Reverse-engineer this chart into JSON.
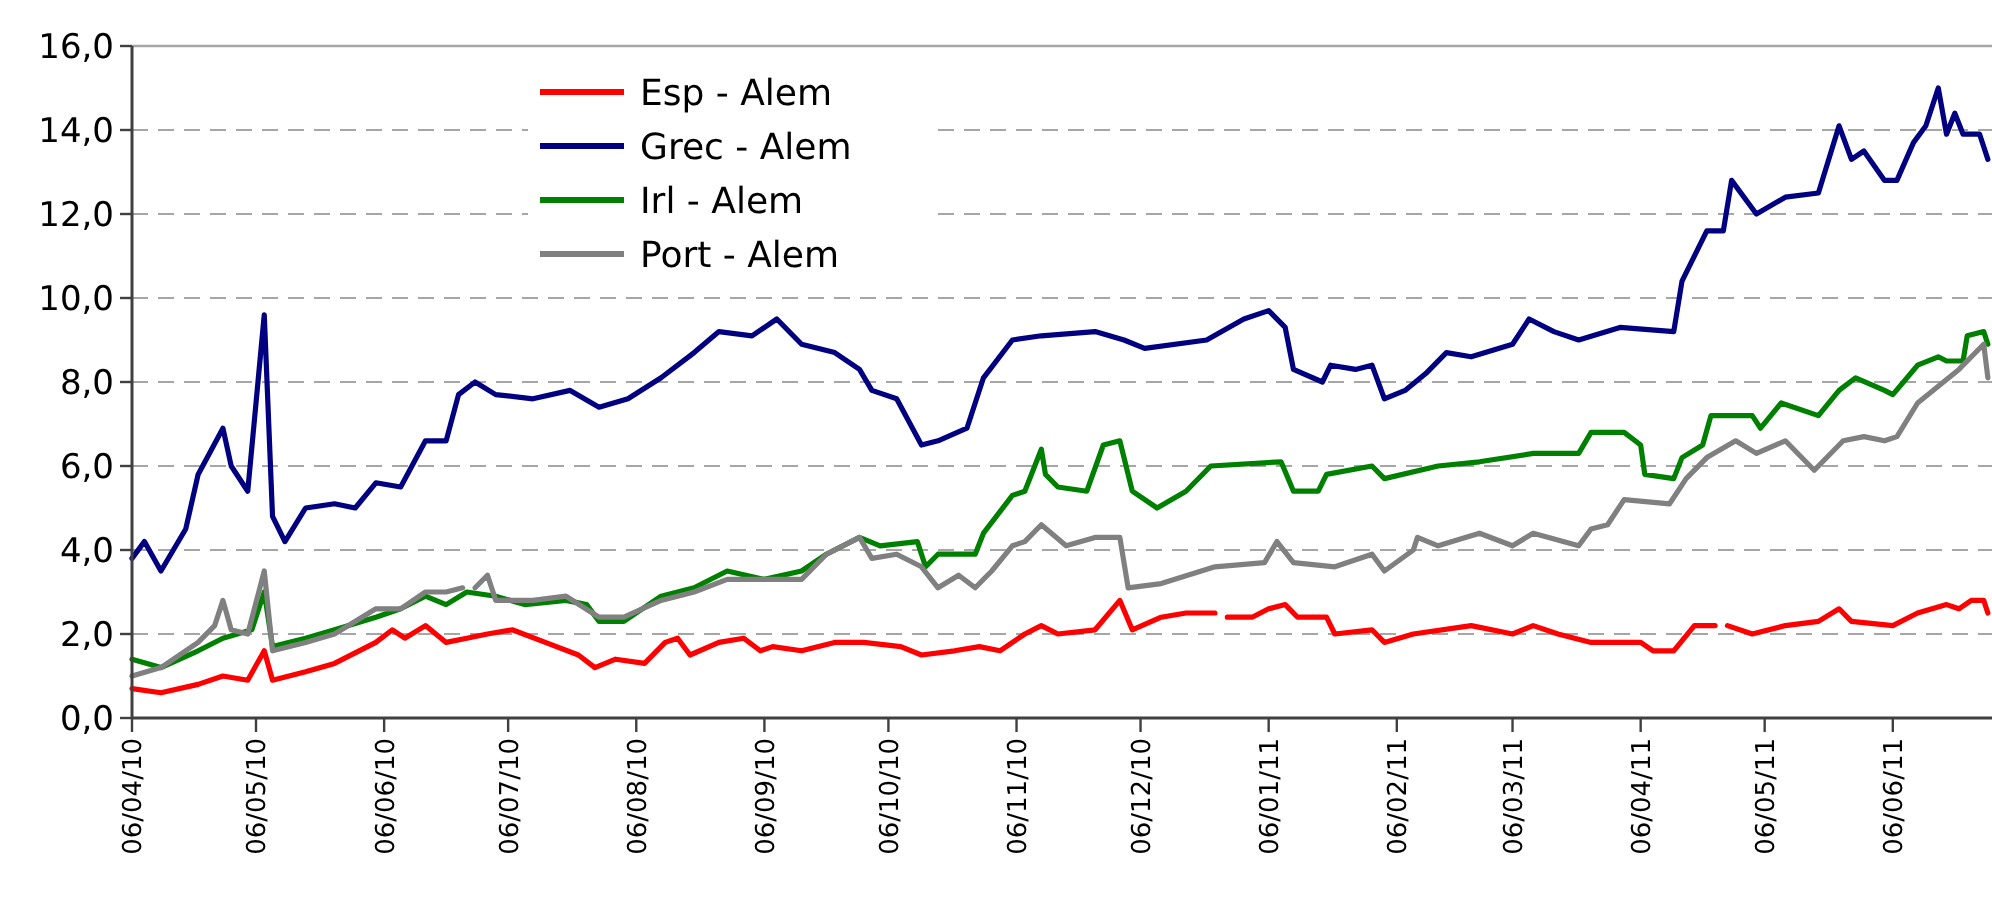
{
  "chart_data": {
    "type": "line",
    "xlim": [
      "2010-04-06",
      "2011-06-30"
    ],
    "ylim": [
      0,
      16
    ],
    "xticks": [
      {
        "value": "2010-04-06",
        "label": "06/04/10"
      },
      {
        "value": "2010-05-06",
        "label": "06/05/10"
      },
      {
        "value": "2010-06-06",
        "label": "06/06/10"
      },
      {
        "value": "2010-07-06",
        "label": "06/07/10"
      },
      {
        "value": "2010-08-06",
        "label": "06/08/10"
      },
      {
        "value": "2010-09-06",
        "label": "06/09/10"
      },
      {
        "value": "2010-10-06",
        "label": "06/10/10"
      },
      {
        "value": "2010-11-06",
        "label": "06/11/10"
      },
      {
        "value": "2010-12-06",
        "label": "06/12/10"
      },
      {
        "value": "2011-01-06",
        "label": "06/01/11"
      },
      {
        "value": "2011-02-06",
        "label": "06/02/11"
      },
      {
        "value": "2011-03-06",
        "label": "06/03/11"
      },
      {
        "value": "2011-04-06",
        "label": "06/04/11"
      },
      {
        "value": "2011-05-06",
        "label": "06/05/11"
      },
      {
        "value": "2011-06-06",
        "label": "06/06/11"
      }
    ],
    "yticks": [
      {
        "value": 0,
        "label": "0,0"
      },
      {
        "value": 2,
        "label": "2,0"
      },
      {
        "value": 4,
        "label": "4,0"
      },
      {
        "value": 6,
        "label": "6,0"
      },
      {
        "value": 8,
        "label": "8,0"
      },
      {
        "value": 10,
        "label": "10,0"
      },
      {
        "value": 12,
        "label": "12,0"
      },
      {
        "value": 14,
        "label": "14,0"
      },
      {
        "value": 16,
        "label": "16,0"
      }
    ],
    "grid": "y",
    "legend": "top left",
    "marker": "none",
    "line_style": "solid",
    "series": [
      {
        "name": "Esp - Alem",
        "color": "#ff0000",
        "x": [
          "2010-04-06",
          "2010-04-13",
          "2010-04-22",
          "2010-04-28",
          "2010-05-04",
          "2010-05-08",
          "2010-05-10",
          "2010-05-18",
          "2010-05-25",
          "2010-06-04",
          "2010-06-08",
          "2010-06-11",
          "2010-06-16",
          "2010-06-21",
          "2010-06-26",
          "2010-07-01",
          "2010-07-07",
          "2010-07-15",
          "2010-07-23",
          "2010-07-27",
          "2010-08-01",
          "2010-08-08",
          "2010-08-13",
          "2010-08-16",
          "2010-08-19",
          "2010-08-26",
          "2010-09-01",
          "2010-09-05",
          "2010-09-08",
          "2010-09-15",
          "2010-09-23",
          "2010-09-30",
          "2010-10-09",
          "2010-10-14",
          "2010-10-22",
          "2010-10-28",
          "2010-11-02",
          "2010-11-08",
          "2010-11-12",
          "2010-11-16",
          "2010-11-25",
          "2010-12-01",
          "2010-12-04",
          "2010-12-11",
          "2010-12-17",
          "2010-12-24",
          "2010-12-26",
          "2010-12-27",
          "2011-01-02",
          "2011-01-06",
          "2011-01-10",
          "2011-01-13",
          "2011-01-20",
          "2011-01-22",
          "2011-01-31",
          "2011-02-03",
          "2011-02-10",
          "2011-02-24",
          "2011-03-06",
          "2011-03-11",
          "2011-03-17",
          "2011-03-25",
          "2011-04-06",
          "2011-04-09",
          "2011-04-14",
          "2011-04-19",
          "2011-04-24",
          "2011-04-25",
          "2011-04-27",
          "2011-05-03",
          "2011-05-11",
          "2011-05-19",
          "2011-05-24",
          "2011-05-27",
          "2011-06-06",
          "2011-06-12",
          "2011-06-19",
          "2011-06-22",
          "2011-06-25",
          "2011-06-28",
          "2011-06-29"
        ],
        "values": [
          0.7,
          0.6,
          0.8,
          1.0,
          0.9,
          1.6,
          0.9,
          1.1,
          1.3,
          1.8,
          2.1,
          1.9,
          2.2,
          1.8,
          1.9,
          2.0,
          2.1,
          1.8,
          1.5,
          1.2,
          1.4,
          1.3,
          1.8,
          1.9,
          1.5,
          1.8,
          1.9,
          1.6,
          1.7,
          1.6,
          1.8,
          1.8,
          1.7,
          1.5,
          1.6,
          1.7,
          1.6,
          2.0,
          2.2,
          2.0,
          2.1,
          2.8,
          2.1,
          2.4,
          2.5,
          2.5,
          null,
          2.4,
          2.4,
          2.6,
          2.7,
          2.4,
          2.4,
          2.0,
          2.1,
          1.8,
          2.0,
          2.2,
          2.0,
          2.2,
          2.0,
          1.8,
          1.8,
          1.6,
          1.6,
          2.2,
          2.2,
          null,
          2.2,
          2.0,
          2.2,
          2.3,
          2.6,
          2.3,
          2.2,
          2.5,
          2.7,
          2.6,
          2.8,
          2.8,
          2.5
        ]
      },
      {
        "name": "Grec - Alem",
        "color": "#000080",
        "x": [
          "2010-04-06",
          "2010-04-09",
          "2010-04-13",
          "2010-04-19",
          "2010-04-22",
          "2010-04-28",
          "2010-04-30",
          "2010-05-04",
          "2010-05-08",
          "2010-05-10",
          "2010-05-13",
          "2010-05-18",
          "2010-05-25",
          "2010-05-30",
          "2010-06-04",
          "2010-06-10",
          "2010-06-16",
          "2010-06-21",
          "2010-06-24",
          "2010-06-28",
          "2010-07-03",
          "2010-07-12",
          "2010-07-21",
          "2010-07-28",
          "2010-08-04",
          "2010-08-12",
          "2010-08-20",
          "2010-08-26",
          "2010-09-03",
          "2010-09-09",
          "2010-09-15",
          "2010-09-23",
          "2010-09-29",
          "2010-10-02",
          "2010-10-08",
          "2010-10-14",
          "2010-10-18",
          "2010-10-25",
          "2010-10-29",
          "2010-11-05",
          "2010-11-12",
          "2010-11-25",
          "2010-12-02",
          "2010-12-07",
          "2010-12-22",
          "2010-12-31",
          "2011-01-06",
          "2011-01-10",
          "2011-01-12",
          "2011-01-19",
          "2011-01-21",
          "2011-01-27",
          "2011-01-31",
          "2011-02-03",
          "2011-02-08",
          "2011-02-13",
          "2011-02-18",
          "2011-02-24",
          "2011-03-06",
          "2011-03-10",
          "2011-03-16",
          "2011-03-22",
          "2011-04-01",
          "2011-04-14",
          "2011-04-16",
          "2011-04-22",
          "2011-04-26",
          "2011-04-28",
          "2011-05-04",
          "2011-05-11",
          "2011-05-19",
          "2011-05-24",
          "2011-05-27",
          "2011-05-30",
          "2011-06-04",
          "2011-06-07",
          "2011-06-11",
          "2011-06-14",
          "2011-06-17",
          "2011-06-19",
          "2011-06-21",
          "2011-06-23",
          "2011-06-27",
          "2011-06-29"
        ],
        "values": [
          3.8,
          4.2,
          3.5,
          4.5,
          5.8,
          6.9,
          6.0,
          5.4,
          9.6,
          4.8,
          4.2,
          5.0,
          5.1,
          5.0,
          5.6,
          5.5,
          6.6,
          6.6,
          7.7,
          8.0,
          7.7,
          7.6,
          7.8,
          7.4,
          7.6,
          8.1,
          8.7,
          9.2,
          9.1,
          9.5,
          8.9,
          8.7,
          8.3,
          7.8,
          7.6,
          6.5,
          6.6,
          6.9,
          8.1,
          9.0,
          9.1,
          9.2,
          9.0,
          8.8,
          9.0,
          9.5,
          9.7,
          9.3,
          8.3,
          8.0,
          8.4,
          8.3,
          8.4,
          7.6,
          7.8,
          8.2,
          8.7,
          8.6,
          8.9,
          9.5,
          9.2,
          9.0,
          9.3,
          9.2,
          10.4,
          11.6,
          11.6,
          12.8,
          12.0,
          12.4,
          12.5,
          14.1,
          13.3,
          13.5,
          12.8,
          12.8,
          13.7,
          14.1,
          15.0,
          13.9,
          14.4,
          13.9,
          13.9,
          13.3
        ]
      },
      {
        "name": "Irl - Alem",
        "color": "#008000",
        "x": [
          "2010-04-06",
          "2010-04-13",
          "2010-04-22",
          "2010-04-28",
          "2010-05-05",
          "2010-05-08",
          "2010-05-10",
          "2010-05-18",
          "2010-05-25",
          "2010-06-04",
          "2010-06-10",
          "2010-06-16",
          "2010-06-21",
          "2010-06-26",
          "2010-07-03",
          "2010-07-10",
          "2010-07-20",
          "2010-07-25",
          "2010-07-28",
          "2010-08-03",
          "2010-08-12",
          "2010-08-20",
          "2010-08-28",
          "2010-09-06",
          "2010-09-15",
          "2010-09-21",
          "2010-09-29",
          "2010-10-04",
          "2010-10-13",
          "2010-10-15",
          "2010-10-18",
          "2010-10-27",
          "2010-10-29",
          "2010-11-05",
          "2010-11-08",
          "2010-11-12",
          "2010-11-13",
          "2010-11-16",
          "2010-11-23",
          "2010-11-27",
          "2010-12-01",
          "2010-12-04",
          "2010-12-10",
          "2010-12-17",
          "2010-12-23",
          "2011-01-09",
          "2011-01-12",
          "2011-01-18",
          "2011-01-20",
          "2011-01-31",
          "2011-02-03",
          "2011-02-16",
          "2011-02-26",
          "2011-03-11",
          "2011-03-22",
          "2011-03-25",
          "2011-04-02",
          "2011-04-06",
          "2011-04-07",
          "2011-04-14",
          "2011-04-16",
          "2011-04-21",
          "2011-04-23",
          "2011-05-03",
          "2011-05-05",
          "2011-05-10",
          "2011-05-19",
          "2011-05-24",
          "2011-05-28",
          "2011-06-04",
          "2011-06-06",
          "2011-06-12",
          "2011-06-17",
          "2011-06-19",
          "2011-06-23",
          "2011-06-24",
          "2011-06-28",
          "2011-06-29"
        ],
        "values": [
          1.4,
          1.2,
          1.6,
          1.9,
          2.1,
          3.0,
          1.7,
          1.9,
          2.1,
          2.4,
          2.6,
          2.9,
          2.7,
          3.0,
          2.9,
          2.7,
          2.8,
          2.7,
          2.3,
          2.3,
          2.9,
          3.1,
          3.5,
          3.3,
          3.5,
          3.9,
          4.3,
          4.1,
          4.2,
          3.6,
          3.9,
          3.9,
          4.4,
          5.3,
          5.4,
          6.4,
          5.8,
          5.5,
          5.4,
          6.5,
          6.6,
          5.4,
          5.0,
          5.4,
          6.0,
          6.1,
          5.4,
          5.4,
          5.8,
          6.0,
          5.7,
          6.0,
          6.1,
          6.3,
          6.3,
          6.8,
          6.8,
          6.5,
          5.8,
          5.7,
          6.2,
          6.5,
          7.2,
          7.2,
          6.9,
          7.5,
          7.2,
          7.8,
          8.1,
          7.8,
          7.7,
          8.4,
          8.6,
          8.5,
          8.5,
          9.1,
          9.2,
          8.9
        ]
      },
      {
        "name": "Port - Alem",
        "color": "#808080",
        "x": [
          "2010-04-06",
          "2010-04-13",
          "2010-04-22",
          "2010-04-26",
          "2010-04-28",
          "2010-04-30",
          "2010-05-04",
          "2010-05-08",
          "2010-05-10",
          "2010-05-18",
          "2010-05-25",
          "2010-06-04",
          "2010-06-10",
          "2010-06-16",
          "2010-06-21",
          "2010-06-25",
          "2010-06-27",
          "2010-06-28",
          "2010-07-01",
          "2010-07-03",
          "2010-07-12",
          "2010-07-20",
          "2010-07-28",
          "2010-08-03",
          "2010-08-12",
          "2010-08-20",
          "2010-08-28",
          "2010-09-06",
          "2010-09-15",
          "2010-09-21",
          "2010-09-29",
          "2010-10-02",
          "2010-10-08",
          "2010-10-14",
          "2010-10-18",
          "2010-10-23",
          "2010-10-27",
          "2010-10-31",
          "2010-11-05",
          "2010-11-08",
          "2010-11-12",
          "2010-11-18",
          "2010-11-25",
          "2010-12-01",
          "2010-12-03",
          "2010-12-11",
          "2010-12-24",
          "2011-01-05",
          "2011-01-08",
          "2011-01-12",
          "2011-01-22",
          "2011-01-31",
          "2011-02-03",
          "2011-02-10",
          "2011-02-11",
          "2011-02-16",
          "2011-02-26",
          "2011-03-06",
          "2011-03-11",
          "2011-03-22",
          "2011-03-25",
          "2011-03-29",
          "2011-04-02",
          "2011-04-13",
          "2011-04-17",
          "2011-04-22",
          "2011-04-29",
          "2011-05-04",
          "2011-05-11",
          "2011-05-18",
          "2011-05-25",
          "2011-05-30",
          "2011-06-04",
          "2011-06-07",
          "2011-06-12",
          "2011-06-17",
          "2011-06-22",
          "2011-06-28",
          "2011-06-29"
        ],
        "values": [
          1.0,
          1.2,
          1.8,
          2.2,
          2.8,
          2.1,
          2.0,
          3.5,
          1.6,
          1.8,
          2.0,
          2.6,
          2.6,
          3.0,
          3.0,
          3.1,
          null,
          3.1,
          3.4,
          2.8,
          2.8,
          2.9,
          2.4,
          2.4,
          2.8,
          3.0,
          3.3,
          3.3,
          3.3,
          3.9,
          4.3,
          3.8,
          3.9,
          3.6,
          3.1,
          3.4,
          3.1,
          3.5,
          4.1,
          4.2,
          4.6,
          4.1,
          4.3,
          4.3,
          3.1,
          3.2,
          3.6,
          3.7,
          4.2,
          3.7,
          3.6,
          3.9,
          3.5,
          4.0,
          4.3,
          4.1,
          4.4,
          4.1,
          4.4,
          4.1,
          4.5,
          4.6,
          5.2,
          5.1,
          5.7,
          6.2,
          6.6,
          6.3,
          6.6,
          5.9,
          6.6,
          6.7,
          6.6,
          6.7,
          7.5,
          7.9,
          8.3,
          8.9,
          8.1
        ]
      }
    ]
  }
}
